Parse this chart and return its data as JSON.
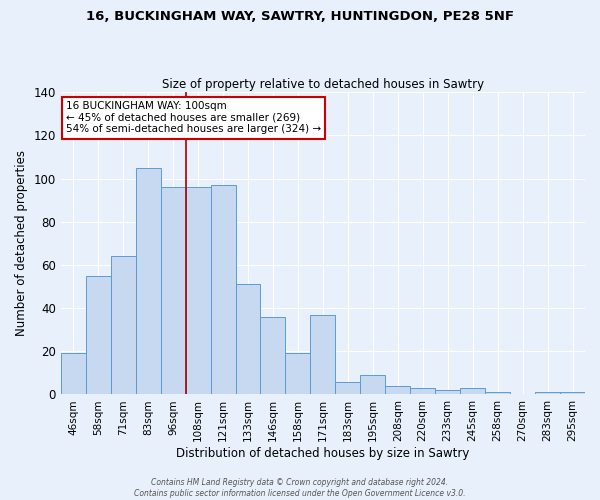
{
  "title": "16, BUCKINGHAM WAY, SAWTRY, HUNTINGDON, PE28 5NF",
  "subtitle": "Size of property relative to detached houses in Sawtry",
  "xlabel": "Distribution of detached houses by size in Sawtry",
  "ylabel": "Number of detached properties",
  "bar_labels": [
    "46sqm",
    "58sqm",
    "71sqm",
    "83sqm",
    "96sqm",
    "108sqm",
    "121sqm",
    "133sqm",
    "146sqm",
    "158sqm",
    "171sqm",
    "183sqm",
    "195sqm",
    "208sqm",
    "220sqm",
    "233sqm",
    "245sqm",
    "258sqm",
    "270sqm",
    "283sqm",
    "295sqm"
  ],
  "bar_values": [
    19,
    55,
    64,
    105,
    96,
    96,
    97,
    51,
    36,
    19,
    37,
    6,
    9,
    4,
    3,
    2,
    3,
    1,
    0,
    1,
    1
  ],
  "bar_color": "#c6d9f0",
  "bar_edge_color": "#5b9bd5",
  "vline_x": 4.5,
  "vline_color": "#aa0000",
  "annotation_title": "16 BUCKINGHAM WAY: 100sqm",
  "annotation_line1": "← 45% of detached houses are smaller (269)",
  "annotation_line2": "54% of semi-detached houses are larger (324) →",
  "annotation_box_color": "#ffffff",
  "annotation_box_edge": "#cc0000",
  "ylim": [
    0,
    140
  ],
  "yticks": [
    0,
    20,
    40,
    60,
    80,
    100,
    120,
    140
  ],
  "background_color": "#e8f0fb",
  "footer_line1": "Contains HM Land Registry data © Crown copyright and database right 2024.",
  "footer_line2": "Contains public sector information licensed under the Open Government Licence v3.0."
}
